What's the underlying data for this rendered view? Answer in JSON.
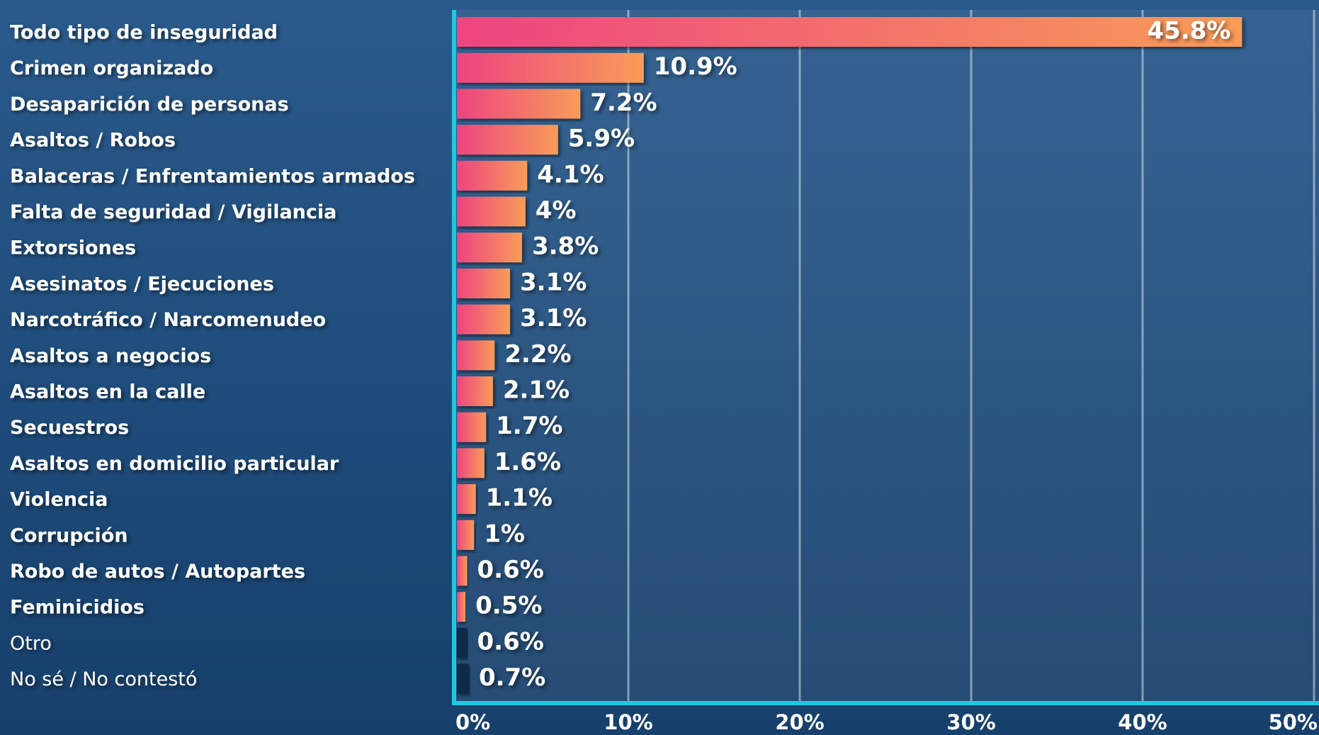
{
  "chart_data": {
    "type": "bar",
    "orientation": "horizontal",
    "categories": [
      "Todo tipo de inseguridad",
      "Crimen organizado",
      "Desaparición de personas",
      "Asaltos / Robos",
      "Balaceras / Enfrentamientos armados",
      "Falta de seguridad / Vigilancia",
      "Extorsiones",
      "Asesinatos / Ejecuciones",
      "Narcotráfico / Narcomenudeo",
      "Asaltos a negocios",
      "Asaltos en la calle",
      "Secuestros",
      "Asaltos en domicilio particular",
      "Violencia",
      "Corrupción",
      "Robo de autos / Autopartes",
      "Feminicidios",
      "Otro",
      "No sé / No contestó"
    ],
    "values": [
      45.8,
      10.9,
      7.2,
      5.9,
      4.1,
      4,
      3.8,
      3.1,
      3.1,
      2.2,
      2.1,
      1.7,
      1.6,
      1.1,
      1,
      0.6,
      0.5,
      0.6,
      0.7
    ],
    "value_labels": [
      "45.8%",
      "10.9%",
      "7.2%",
      "5.9%",
      "4.1%",
      "4%",
      "3.8%",
      "3.1%",
      "3.1%",
      "2.2%",
      "2.1%",
      "1.7%",
      "1.6%",
      "1.1%",
      "1%",
      "0.6%",
      "0.5%",
      "0.6%",
      "0.7%"
    ],
    "highlight": [
      true,
      true,
      true,
      true,
      true,
      true,
      true,
      true,
      true,
      true,
      true,
      true,
      true,
      true,
      true,
      true,
      true,
      false,
      false
    ],
    "gradient": [
      "#ee4480",
      "#f89c58"
    ],
    "color_other": "#0f2a4a",
    "xlim": [
      0,
      50
    ],
    "xticks": [
      {
        "value": 0,
        "label": "0%"
      },
      {
        "value": 10,
        "label": "10%"
      },
      {
        "value": 20,
        "label": "20%"
      },
      {
        "value": 30,
        "label": "30%"
      },
      {
        "value": 40,
        "label": "40%"
      },
      {
        "value": 50,
        "label": "50%"
      }
    ],
    "grid": true
  }
}
